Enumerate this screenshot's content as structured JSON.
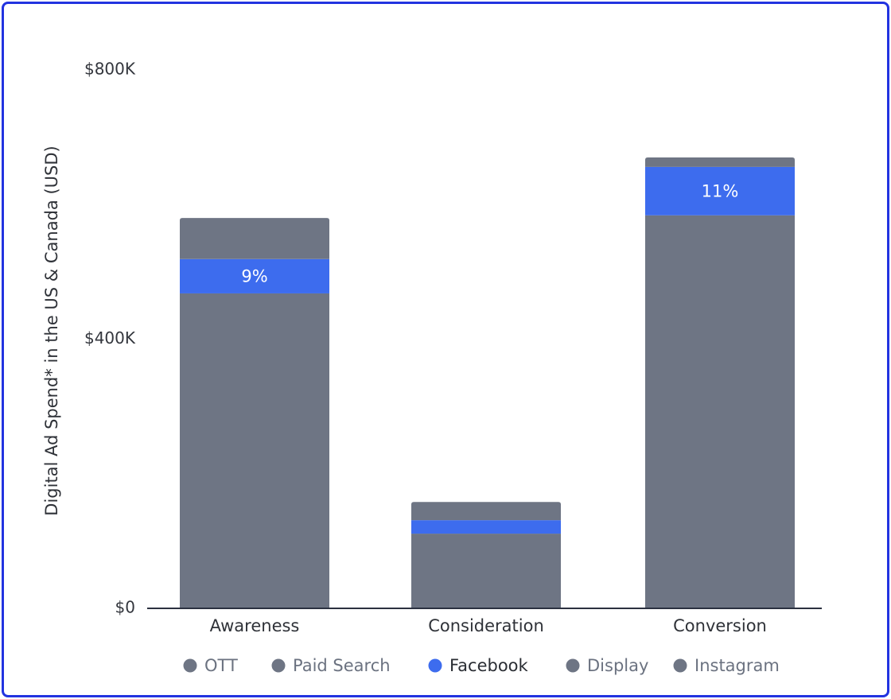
{
  "chart_data": {
    "type": "bar",
    "stacked": true,
    "ylabel": "Digital Ad Spend* in the US & Canada (USD)",
    "xlabel": "",
    "ylim": [
      0,
      800000
    ],
    "yticks": [
      {
        "value": 0,
        "label": "$0"
      },
      {
        "value": 400000,
        "label": "$400K"
      },
      {
        "value": 800000,
        "label": "$800K"
      }
    ],
    "categories": [
      "Awareness",
      "Consideration",
      "Conversion"
    ],
    "series": [
      {
        "name": "OTT",
        "color": "#6e7584",
        "values": [
          0,
          0,
          0
        ]
      },
      {
        "name": "Paid Search",
        "color": "#6e7584",
        "values": [
          468000,
          111000,
          584000
        ]
      },
      {
        "name": "Facebook",
        "color": "#3d6cee",
        "values": [
          51000,
          20000,
          72000
        ],
        "labels": [
          "9%",
          "",
          "11%"
        ]
      },
      {
        "name": "Display",
        "color": "#6e7584",
        "values": [
          0,
          0,
          0
        ]
      },
      {
        "name": "Instagram",
        "color": "#6e7584",
        "values": [
          61000,
          27000,
          14000
        ]
      }
    ],
    "legend": {
      "position": "bottom",
      "highlighted": "Facebook",
      "items": [
        {
          "name": "OTT",
          "color": "#6e7584"
        },
        {
          "name": "Paid Search",
          "color": "#6e7584"
        },
        {
          "name": "Facebook",
          "color": "#3d6cee"
        },
        {
          "name": "Display",
          "color": "#6e7584"
        },
        {
          "name": "Instagram",
          "color": "#6e7584"
        }
      ]
    },
    "grid": false
  }
}
